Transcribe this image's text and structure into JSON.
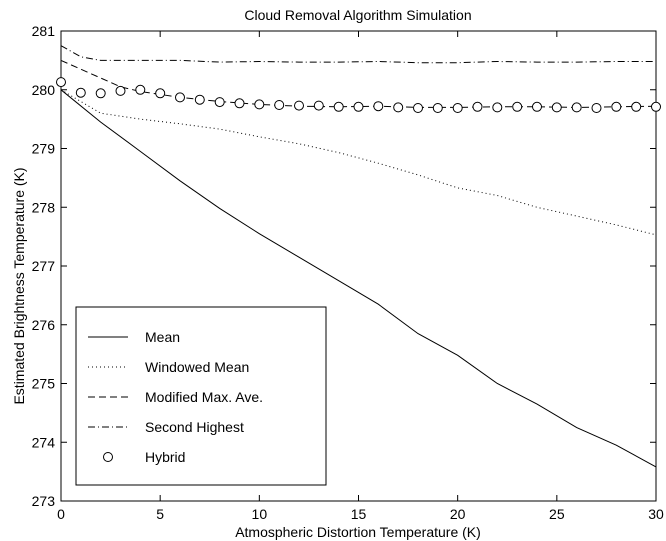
{
  "chart_data": {
    "type": "line",
    "title": "Cloud Removal Algorithm Simulation",
    "xlabel": "Atmospheric Distortion Temperature (K)",
    "ylabel": "Estimated Brightness Temperature (K)",
    "xlim": [
      0,
      30
    ],
    "ylim": [
      273,
      281
    ],
    "xticks": [
      0,
      5,
      10,
      15,
      20,
      25,
      30
    ],
    "yticks": [
      273,
      274,
      275,
      276,
      277,
      278,
      279,
      280,
      281
    ],
    "grid": false,
    "legend_position": "bottom-left",
    "series": [
      {
        "name": "Mean",
        "style": "solid",
        "marker": "none",
        "color": "#000000",
        "x": [
          0,
          2,
          4,
          6,
          8,
          10,
          12,
          14,
          16,
          18,
          20,
          22,
          24,
          26,
          28,
          30
        ],
        "y": [
          280.0,
          279.45,
          278.95,
          278.45,
          277.98,
          277.55,
          277.15,
          276.75,
          276.35,
          275.85,
          275.48,
          275.0,
          274.65,
          274.25,
          273.95,
          273.58
        ]
      },
      {
        "name": "Windowed Mean",
        "style": "dotted",
        "marker": "none",
        "color": "#000000",
        "x": [
          0,
          2,
          4,
          6,
          8,
          10,
          12,
          14,
          16,
          18,
          20,
          22,
          24,
          26,
          28,
          30
        ],
        "y": [
          280.0,
          279.6,
          279.5,
          279.42,
          279.33,
          279.2,
          279.08,
          278.93,
          278.75,
          278.55,
          278.33,
          278.2,
          278.0,
          277.85,
          277.7,
          277.53
        ]
      },
      {
        "name": "Modified Max. Ave.",
        "style": "dashed",
        "marker": "none",
        "color": "#000000",
        "x": [
          0,
          1,
          2,
          3,
          4,
          5,
          6,
          8,
          10,
          12,
          14,
          16,
          18,
          20,
          22,
          24,
          26,
          28,
          30
        ],
        "y": [
          280.5,
          280.35,
          280.2,
          280.05,
          279.97,
          279.92,
          279.87,
          279.8,
          279.75,
          279.72,
          279.71,
          279.72,
          279.7,
          279.7,
          279.71,
          279.71,
          279.7,
          279.71,
          279.72
        ]
      },
      {
        "name": "Second Highest",
        "style": "dashdot",
        "marker": "none",
        "color": "#000000",
        "x": [
          0,
          1,
          2,
          4,
          6,
          8,
          10,
          12,
          14,
          16,
          18,
          20,
          22,
          24,
          26,
          28,
          30
        ],
        "y": [
          280.75,
          280.56,
          280.5,
          280.5,
          280.5,
          280.47,
          280.48,
          280.47,
          280.47,
          280.48,
          280.46,
          280.46,
          280.48,
          280.47,
          280.47,
          280.48,
          280.48
        ]
      },
      {
        "name": "Hybrid",
        "style": "none",
        "marker": "circle",
        "color": "#000000",
        "x": [
          0,
          1,
          2,
          3,
          4,
          5,
          6,
          7,
          8,
          9,
          10,
          11,
          12,
          13,
          14,
          15,
          16,
          17,
          18,
          19,
          20,
          21,
          22,
          23,
          24,
          25,
          26,
          27,
          28,
          29,
          30
        ],
        "y": [
          280.13,
          279.95,
          279.94,
          279.98,
          280.0,
          279.94,
          279.87,
          279.83,
          279.79,
          279.77,
          279.75,
          279.74,
          279.73,
          279.73,
          279.71,
          279.71,
          279.72,
          279.7,
          279.69,
          279.69,
          279.69,
          279.71,
          279.7,
          279.71,
          279.71,
          279.7,
          279.7,
          279.69,
          279.71,
          279.71,
          279.71
        ]
      }
    ]
  }
}
